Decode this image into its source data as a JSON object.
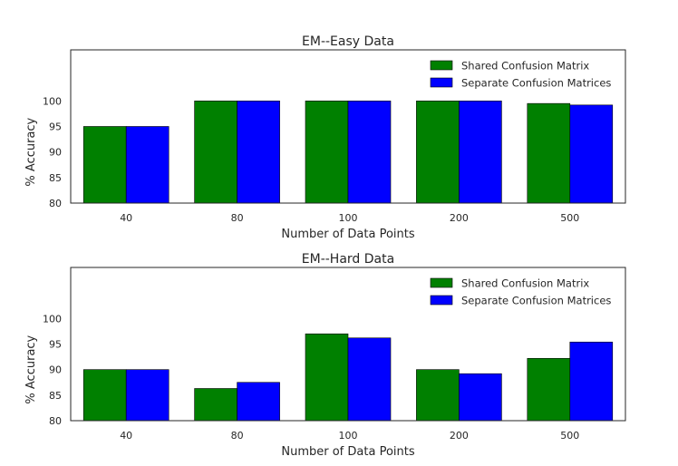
{
  "chart_data": [
    {
      "type": "bar",
      "title": "EM--Easy Data",
      "xlabel": "Number of Data Points",
      "ylabel": "% Accuracy",
      "categories": [
        "40",
        "80",
        "100",
        "200",
        "500"
      ],
      "ylim": [
        80,
        110
      ],
      "yticks": [
        80,
        85,
        90,
        95,
        100
      ],
      "legend_position": "top-right",
      "grid": false,
      "series": [
        {
          "name": "Shared Confusion Matrix",
          "color": "#008000",
          "values": [
            95,
            100,
            100,
            100,
            99.5
          ]
        },
        {
          "name": "Separate Confusion Matrices",
          "color": "#0000ff",
          "values": [
            95,
            100,
            100,
            100,
            99.2
          ]
        }
      ]
    },
    {
      "type": "bar",
      "title": "EM--Hard Data",
      "xlabel": "Number of Data Points",
      "ylabel": "% Accuracy",
      "categories": [
        "40",
        "80",
        "100",
        "200",
        "500"
      ],
      "ylim": [
        80,
        110
      ],
      "yticks": [
        80,
        85,
        90,
        95,
        100
      ],
      "legend_position": "top-right",
      "grid": false,
      "series": [
        {
          "name": "Shared Confusion Matrix",
          "color": "#008000",
          "values": [
            90,
            86.3,
            97,
            90,
            92.2
          ]
        },
        {
          "name": "Separate Confusion Matrices",
          "color": "#0000ff",
          "values": [
            90,
            87.5,
            96.2,
            89.2,
            95.4
          ]
        }
      ]
    }
  ]
}
